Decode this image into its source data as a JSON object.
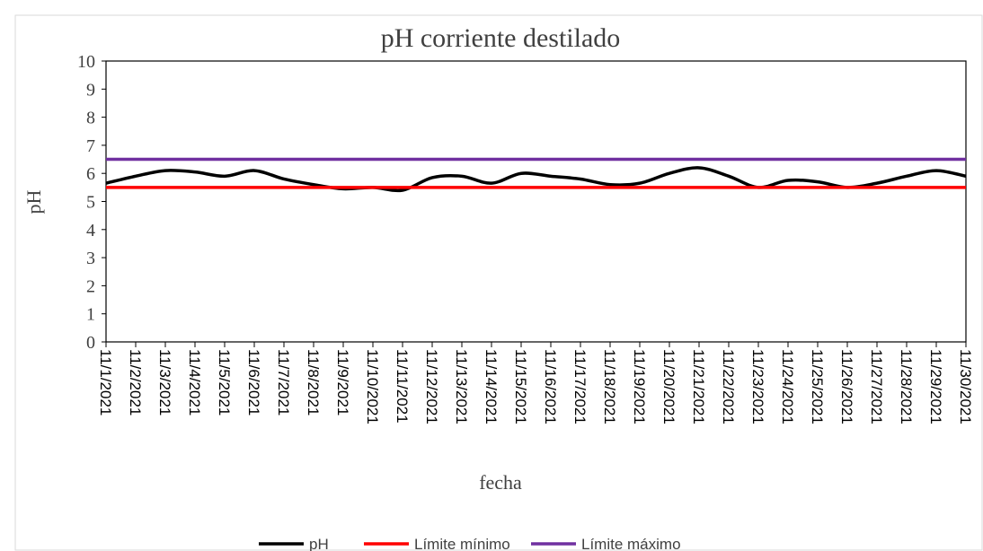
{
  "chart_data": {
    "type": "line",
    "title": "pH corriente destilado",
    "x_label": "fecha",
    "y_label": "pH",
    "categories": [
      "11/1/2021",
      "11/2/2021",
      "11/3/2021",
      "11/4/2021",
      "11/5/2021",
      "11/6/2021",
      "11/7/2021",
      "11/8/2021",
      "11/9/2021",
      "11/10/2021",
      "11/11/2021",
      "11/12/2021",
      "11/13/2021",
      "11/14/2021",
      "11/15/2021",
      "11/16/2021",
      "11/17/2021",
      "11/18/2021",
      "11/19/2021",
      "11/20/2021",
      "11/21/2021",
      "11/22/2021",
      "11/23/2021",
      "11/24/2021",
      "11/25/2021",
      "11/26/2021",
      "11/27/2021",
      "11/28/2021",
      "11/29/2021",
      "11/30/2021"
    ],
    "series": [
      {
        "name": "pH",
        "color": "#000000",
        "smooth": true,
        "values": [
          5.65,
          5.9,
          6.1,
          6.05,
          5.9,
          6.1,
          5.8,
          5.6,
          5.45,
          5.5,
          5.4,
          5.85,
          5.9,
          5.65,
          6.0,
          5.9,
          5.8,
          5.6,
          5.65,
          6.0,
          6.2,
          5.9,
          5.5,
          5.75,
          5.7,
          5.5,
          5.65,
          5.9,
          6.1,
          5.9
        ]
      },
      {
        "name": "Límite mínimo",
        "color": "#ff0000",
        "values": [
          5.5,
          5.5,
          5.5,
          5.5,
          5.5,
          5.5,
          5.5,
          5.5,
          5.5,
          5.5,
          5.5,
          5.5,
          5.5,
          5.5,
          5.5,
          5.5,
          5.5,
          5.5,
          5.5,
          5.5,
          5.5,
          5.5,
          5.5,
          5.5,
          5.5,
          5.5,
          5.5,
          5.5,
          5.5,
          5.5
        ]
      },
      {
        "name": "Límite máximo",
        "color": "#7030a0",
        "values": [
          6.5,
          6.5,
          6.5,
          6.5,
          6.5,
          6.5,
          6.5,
          6.5,
          6.5,
          6.5,
          6.5,
          6.5,
          6.5,
          6.5,
          6.5,
          6.5,
          6.5,
          6.5,
          6.5,
          6.5,
          6.5,
          6.5,
          6.5,
          6.5,
          6.5,
          6.5,
          6.5,
          6.5,
          6.5,
          6.5
        ]
      }
    ],
    "ylim": [
      0,
      10
    ],
    "yticks": [
      0,
      1,
      2,
      3,
      4,
      5,
      6,
      7,
      8,
      9,
      10
    ],
    "grid": false,
    "legend": "bottom"
  }
}
